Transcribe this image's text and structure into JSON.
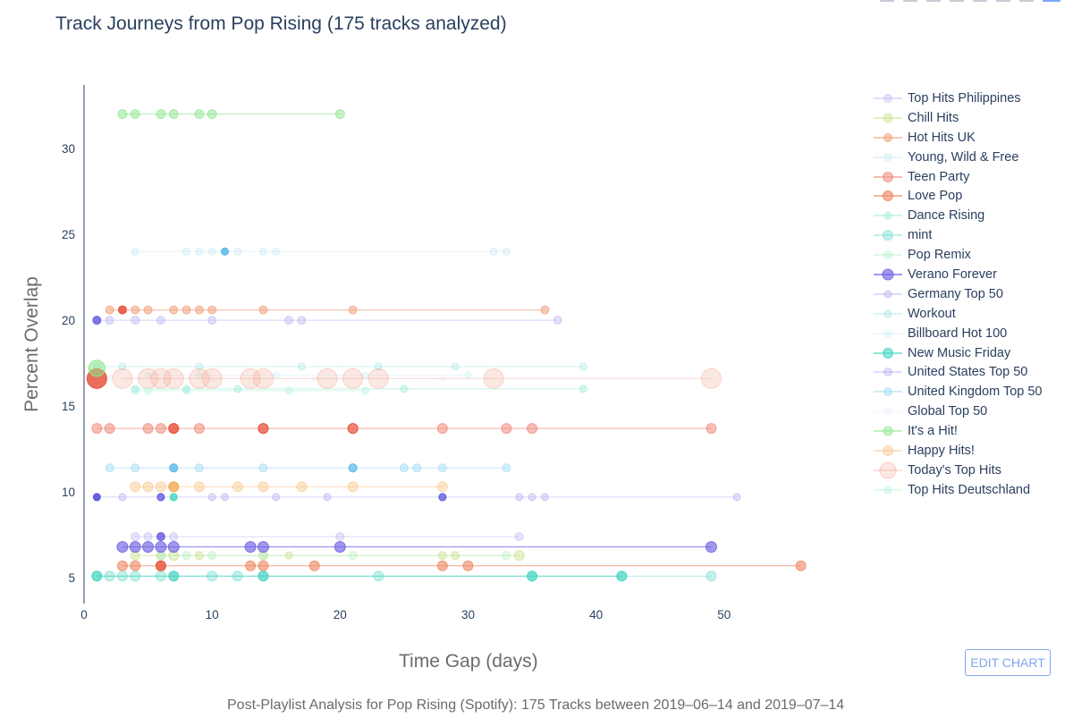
{
  "title": "Track Journeys from Pop Rising (175 tracks analyzed)",
  "caption": "Post-Playlist Analysis for Pop Rising (Spotify): 175 Tracks between 2019–06–14 and 2019–07–14",
  "edit_button": "EDIT CHART",
  "chart_data": {
    "type": "scatter",
    "title": "Track Journeys from Pop Rising (175 tracks analyzed)",
    "xlabel": "Time Gap (days)",
    "ylabel": "Percent Overlap",
    "xlim": [
      0,
      57
    ],
    "ylim": [
      3.5,
      33.7
    ],
    "x_ticks": [
      0,
      10,
      20,
      30,
      40,
      50
    ],
    "y_ticks": [
      5,
      10,
      15,
      20,
      25,
      30
    ],
    "grid": false,
    "legend_position": "right",
    "series": [
      {
        "name": "Top Hits Philippines",
        "color": "#b9b3f4",
        "opacity": 0.35,
        "y": 7.4,
        "x": [
          4,
          5,
          6,
          7,
          20,
          34
        ],
        "size": [
          7,
          7,
          7,
          7,
          7,
          7
        ]
      },
      {
        "name": "Chill Hits",
        "color": "#c8e08a",
        "opacity": 0.45,
        "y": 6.3,
        "x": [
          4,
          6,
          7,
          9,
          14,
          16,
          28,
          29,
          34
        ],
        "size": [
          8,
          8,
          9,
          7,
          8,
          6,
          7,
          7,
          9
        ]
      },
      {
        "name": "Hot Hits UK",
        "color": "#f0a07a",
        "opacity": 0.55,
        "y": 20.6,
        "x": [
          2,
          3,
          4,
          5,
          7,
          8,
          9,
          10,
          14,
          21,
          36
        ],
        "size": [
          7,
          7,
          7,
          7,
          7,
          7,
          7,
          7,
          7,
          7,
          7
        ]
      },
      {
        "name": "Young, Wild & Free",
        "color": "#bfe3f5",
        "opacity": 0.3,
        "y": 24.0,
        "x": [
          4,
          8,
          9,
          10,
          12,
          14,
          15,
          32,
          33
        ],
        "size": [
          6,
          6,
          6,
          6,
          6,
          6,
          6,
          6,
          6
        ]
      },
      {
        "name": "Teen Party",
        "color": "#f08a7c",
        "opacity": 0.55,
        "y": 13.7,
        "x": [
          1,
          2,
          5,
          6,
          7,
          9,
          14,
          21,
          28,
          33,
          35,
          49
        ],
        "size": [
          9,
          9,
          9,
          9,
          9,
          9,
          9,
          9,
          9,
          9,
          9,
          9
        ]
      },
      {
        "name": "Love Pop",
        "color": "#ef8560",
        "opacity": 0.6,
        "y": 5.7,
        "x": [
          3,
          4,
          6,
          13,
          14,
          18,
          28,
          30,
          56
        ],
        "size": [
          9,
          9,
          9,
          9,
          9,
          9,
          9,
          9,
          9
        ]
      },
      {
        "name": "Dance Rising",
        "color": "#9eeed8",
        "opacity": 0.45,
        "y": 16.0,
        "x": [
          4,
          8,
          12,
          25,
          39
        ],
        "size": [
          6,
          6,
          6,
          6,
          6
        ]
      },
      {
        "name": "mint",
        "color": "#7ee0d2",
        "opacity": 0.45,
        "y": 5.1,
        "x": [
          1,
          2,
          3,
          4,
          6,
          7,
          10,
          12,
          14,
          23,
          35,
          42,
          49
        ],
        "size": [
          9,
          9,
          9,
          9,
          9,
          9,
          9,
          9,
          9,
          9,
          9,
          9,
          9
        ]
      },
      {
        "name": "Pop Remix",
        "color": "#b8f0c6",
        "opacity": 0.4,
        "y": 6.3,
        "x": [
          6,
          8,
          10,
          14,
          21,
          33
        ],
        "size": [
          7,
          7,
          7,
          7,
          7,
          7
        ]
      },
      {
        "name": "Verano Forever",
        "color": "#6d63e3",
        "opacity": 0.65,
        "y": 6.8,
        "x": [
          3,
          4,
          5,
          6,
          7,
          13,
          14,
          20,
          49
        ],
        "size": [
          10,
          10,
          10,
          10,
          10,
          10,
          10,
          10,
          10
        ]
      },
      {
        "name": "Germany Top 50",
        "color": "#b3b0f2",
        "opacity": 0.4,
        "y": 9.7,
        "x": [
          1,
          3,
          6,
          10,
          11,
          15,
          19,
          28,
          34,
          35,
          36,
          51
        ],
        "size": [
          6,
          6,
          6,
          6,
          6,
          6,
          6,
          6,
          6,
          6,
          6,
          6
        ]
      },
      {
        "name": "Workout",
        "color": "#a4e6df",
        "opacity": 0.35,
        "y": 17.3,
        "x": [
          1,
          3,
          9,
          17,
          23,
          29,
          39
        ],
        "size": [
          6,
          6,
          6,
          6,
          6,
          6,
          6
        ]
      },
      {
        "name": "Billboard Hot 100",
        "color": "#cfeef7",
        "opacity": 0.35,
        "y": 16.8,
        "x": [
          5,
          9,
          15,
          22,
          30
        ],
        "size": [
          5,
          5,
          5,
          5,
          5
        ]
      },
      {
        "name": "New Music Friday",
        "color": "#45d6c2",
        "opacity": 0.6,
        "y": 5.1,
        "x": [
          1,
          7,
          14,
          35,
          42
        ],
        "size": [
          9,
          9,
          9,
          9,
          9
        ]
      },
      {
        "name": "United States Top 50",
        "color": "#b6b2f4",
        "opacity": 0.4,
        "y": 20.0,
        "x": [
          1,
          2,
          4,
          6,
          10,
          16,
          17,
          37
        ],
        "size": [
          7,
          7,
          7,
          7,
          7,
          7,
          7,
          7
        ]
      },
      {
        "name": "United Kingdom Top 50",
        "color": "#a6ddf5",
        "opacity": 0.5,
        "y": 11.4,
        "x": [
          2,
          4,
          7,
          9,
          14,
          21,
          25,
          26,
          28,
          33
        ],
        "size": [
          7,
          7,
          7,
          7,
          7,
          7,
          7,
          7,
          7,
          7
        ]
      },
      {
        "name": "Global Top 50",
        "color": "#f2f3fb",
        "opacity": 0.5,
        "y": 16.6,
        "x": [
          2,
          10,
          18,
          28
        ],
        "size": [
          5,
          5,
          5,
          5
        ]
      },
      {
        "name": "It's a Hit!",
        "color": "#8be58b",
        "opacity": 0.5,
        "y": 32.0,
        "x": [
          3,
          4,
          6,
          7,
          9,
          10,
          20
        ],
        "size": [
          8,
          8,
          8,
          8,
          8,
          8,
          8
        ]
      },
      {
        "name": "Happy Hits!",
        "color": "#f9c88a",
        "opacity": 0.45,
        "y": 10.3,
        "x": [
          4,
          5,
          6,
          7,
          9,
          12,
          14,
          17,
          21,
          28
        ],
        "size": [
          9,
          9,
          9,
          9,
          9,
          9,
          9,
          9,
          9,
          9
        ]
      },
      {
        "name": "Today's Top Hits",
        "color": "#f4a58f",
        "opacity": 0.25,
        "y": 16.6,
        "x": [
          3,
          5,
          6,
          7,
          9,
          10,
          13,
          14,
          19,
          21,
          23,
          32,
          49
        ],
        "size": [
          20,
          20,
          20,
          20,
          20,
          20,
          20,
          20,
          20,
          20,
          20,
          20,
          20
        ]
      },
      {
        "name": "Top Hits Deutschland",
        "color": "#b5f3df",
        "opacity": 0.4,
        "y": 15.9,
        "x": [
          4,
          5,
          8,
          16,
          22
        ],
        "size": [
          6,
          6,
          6,
          6,
          6
        ]
      }
    ],
    "highlights": [
      {
        "x": 1,
        "y": 16.6,
        "size": 20,
        "color": "#e8553f",
        "opacity": 0.85
      },
      {
        "x": 1,
        "y": 17.2,
        "size": 16,
        "color": "#8be58b",
        "opacity": 0.55
      },
      {
        "x": 11,
        "y": 24.0,
        "size": 6,
        "color": "#5ab8e8",
        "opacity": 0.85
      },
      {
        "x": 1,
        "y": 20.0,
        "size": 7,
        "color": "#6d63e3",
        "opacity": 0.85
      },
      {
        "x": 3,
        "y": 20.6,
        "size": 7,
        "color": "#e8553f",
        "opacity": 0.85
      },
      {
        "x": 7,
        "y": 13.7,
        "size": 9,
        "color": "#e8553f",
        "opacity": 0.75
      },
      {
        "x": 14,
        "y": 13.7,
        "size": 9,
        "color": "#e8553f",
        "opacity": 0.6
      },
      {
        "x": 21,
        "y": 13.7,
        "size": 9,
        "color": "#e8553f",
        "opacity": 0.55
      },
      {
        "x": 6,
        "y": 7.4,
        "size": 7,
        "color": "#6d63e3",
        "opacity": 0.85
      },
      {
        "x": 7,
        "y": 11.4,
        "size": 7,
        "color": "#5ab8e8",
        "opacity": 0.7
      },
      {
        "x": 21,
        "y": 11.4,
        "size": 7,
        "color": "#5ab8e8",
        "opacity": 0.6
      },
      {
        "x": 7,
        "y": 10.3,
        "size": 9,
        "color": "#f5a84f",
        "opacity": 0.7
      },
      {
        "x": 1,
        "y": 9.7,
        "size": 6,
        "color": "#5b55e0",
        "opacity": 0.9
      },
      {
        "x": 6,
        "y": 9.7,
        "size": 6,
        "color": "#5b55e0",
        "opacity": 0.7
      },
      {
        "x": 28,
        "y": 9.7,
        "size": 6,
        "color": "#5b55e0",
        "opacity": 0.7
      },
      {
        "x": 7,
        "y": 9.7,
        "size": 6,
        "color": "#45d6c2",
        "opacity": 0.8
      },
      {
        "x": 6,
        "y": 5.7,
        "size": 9,
        "color": "#e8553f",
        "opacity": 0.7
      }
    ]
  }
}
